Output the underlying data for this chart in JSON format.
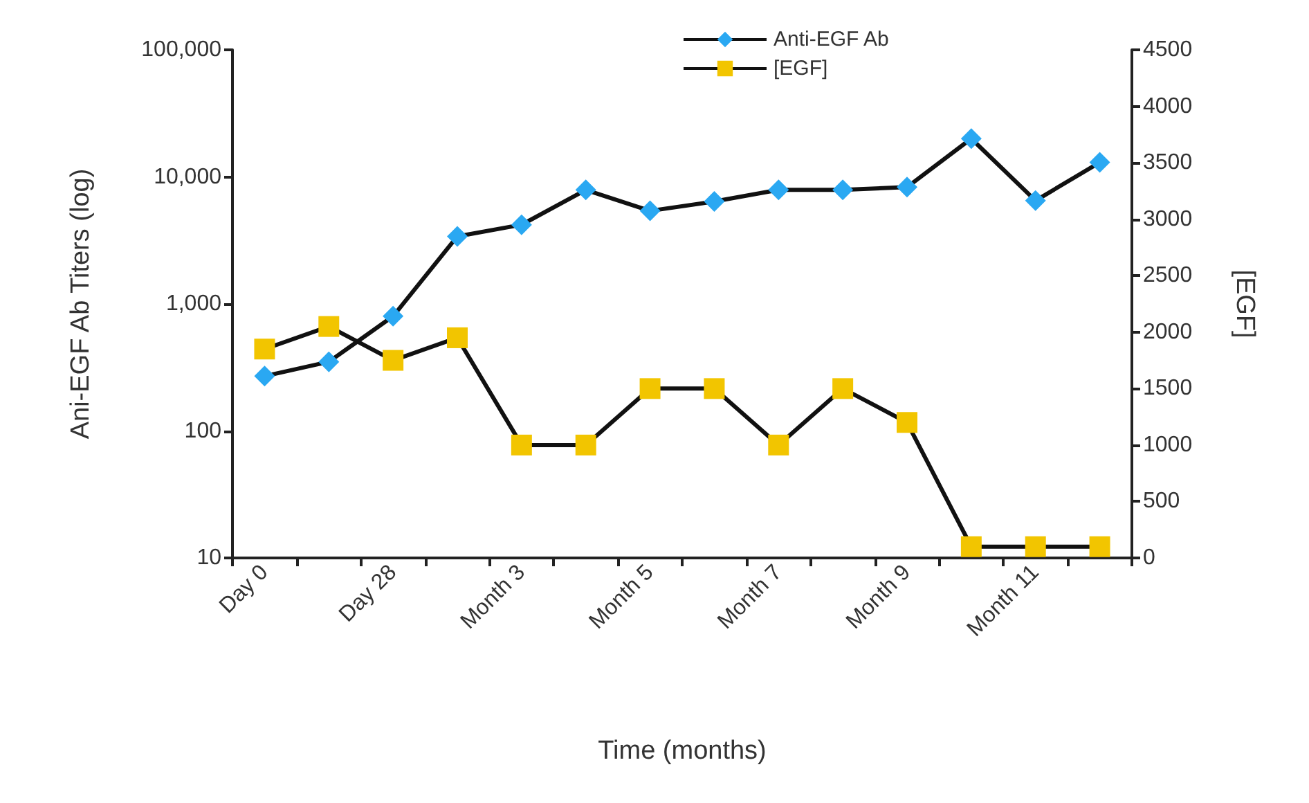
{
  "chart_data": {
    "type": "line",
    "xlabel": "Time (months)",
    "ylabel": "Ani-EGF Ab Titers (log)",
    "y2label": "[EGF]",
    "categories": [
      "Day 0",
      null,
      "Day 28",
      null,
      "Month 3",
      null,
      "Month 5",
      null,
      "Month 7",
      null,
      "Month 9",
      null,
      "Month 11",
      null
    ],
    "series": [
      {
        "name": "Anti-EGF Ab",
        "color": "#2aa8f2",
        "marker": "diamond",
        "values": [
          270,
          350,
          800,
          3400,
          4200,
          7900,
          5400,
          6400,
          7900,
          7900,
          8300,
          20000,
          6500,
          13000
        ]
      },
      {
        "name": "[EGF]",
        "color": "#f2c500",
        "marker": "square",
        "axis": "y2",
        "values": [
          1850,
          2050,
          1750,
          1950,
          1000,
          1000,
          1500,
          1500,
          1000,
          1500,
          1200,
          100,
          100,
          100
        ]
      }
    ],
    "log": "y",
    "ylim": [
      10,
      100000
    ],
    "yticks": [
      10,
      100,
      {
        "value": 1000,
        "label": "1,000"
      },
      {
        "value": 10000,
        "label": "10,000"
      },
      {
        "value": 100000,
        "label": "100,000"
      }
    ],
    "y2lim": [
      0,
      4500
    ],
    "y2ticks": [
      0,
      500,
      1000,
      1500,
      2000,
      2500,
      3000,
      3500,
      4000,
      4500
    ],
    "grid": false,
    "legend": "top",
    "line_style": "solid"
  }
}
